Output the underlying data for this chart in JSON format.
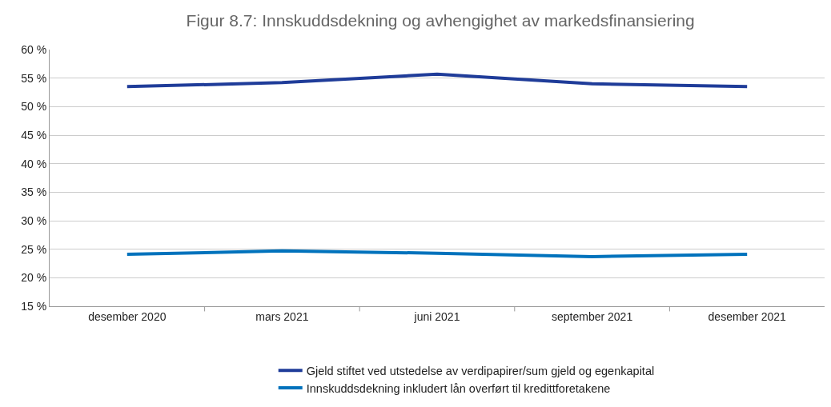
{
  "chart_data": {
    "type": "line",
    "title": "Figur 8.7: Innskuddsdekning og avhengighet av markedsfinansiering",
    "categories": [
      "desember 2020",
      "mars 2021",
      "juni 2021",
      "september 2021",
      "desember 2021"
    ],
    "series": [
      {
        "name": "Gjeld stiftet ved utstedelse av verdipapirer/sum gjeld og egenkapital",
        "color": "#1f3c99",
        "values": [
          53.5,
          54.2,
          55.7,
          54.0,
          53.5
        ]
      },
      {
        "name": "Innskuddsdekning inkludert lån overført til kredittforetakene",
        "color": "#0072bc",
        "values": [
          24.1,
          24.7,
          24.3,
          23.7,
          24.1
        ]
      }
    ],
    "ylim": [
      15,
      60
    ],
    "yticks": [
      {
        "value": 15,
        "label": "15 %"
      },
      {
        "value": 20,
        "label": "20 %"
      },
      {
        "value": 25,
        "label": "25 %"
      },
      {
        "value": 30,
        "label": "30 %"
      },
      {
        "value": 35,
        "label": "35 %"
      },
      {
        "value": 40,
        "label": "40 %"
      },
      {
        "value": 45,
        "label": "45 %"
      },
      {
        "value": 50,
        "label": "50 %"
      },
      {
        "value": 55,
        "label": "55 %"
      },
      {
        "value": 60,
        "label": "60 %"
      }
    ],
    "grid": "y",
    "legend": "bottom",
    "marker": "none",
    "line_style": "solid"
  }
}
